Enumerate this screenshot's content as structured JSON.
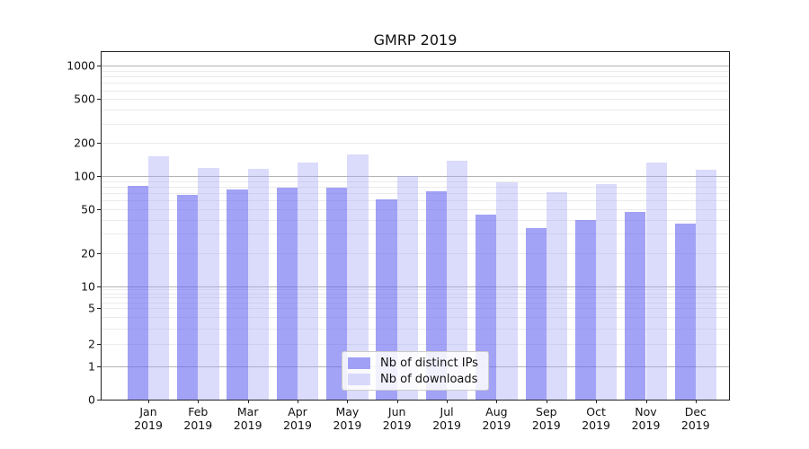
{
  "chart_data": {
    "type": "bar",
    "title": "GMRP 2019",
    "categories": [
      "Jan 2019",
      "Feb 2019",
      "Mar 2019",
      "Apr 2019",
      "May 2019",
      "Jun 2019",
      "Jul 2019",
      "Aug 2019",
      "Sep 2019",
      "Oct 2019",
      "Nov 2019",
      "Dec 2019"
    ],
    "series": [
      {
        "name": "Nb of distinct IPs",
        "color": "rgba(105,105,240,0.62)",
        "values": [
          82,
          67,
          75,
          78,
          78,
          61,
          73,
          45,
          34,
          40,
          47,
          37
        ]
      },
      {
        "name": "Nb of downloads",
        "color": "rgba(165,165,245,0.40)",
        "values": [
          152,
          119,
          117,
          132,
          158,
          100,
          138,
          88,
          72,
          84,
          132,
          114
        ]
      }
    ],
    "y_axis": {
      "scale": "symlog",
      "tick_labels": [
        "1000",
        "500",
        "200",
        "100",
        "50",
        "20",
        "10",
        "5",
        "2",
        "1",
        "0"
      ],
      "tick_values": [
        1000,
        500,
        200,
        100,
        50,
        20,
        10,
        5,
        2,
        1,
        0
      ],
      "range": [
        0,
        1000
      ]
    },
    "grid": "major and minor horizontal gridlines",
    "legend_position": "lower center"
  },
  "colors": {
    "bar_distinct_ips": "rgba(105,105,240,0.62)",
    "bar_downloads": "rgba(165,165,245,0.40)",
    "grid_major": "#b4b4b4",
    "grid_minor": "#ebebeb",
    "axis_spine": "#222222",
    "text": "#111111",
    "legend_border": "#cccccc"
  }
}
